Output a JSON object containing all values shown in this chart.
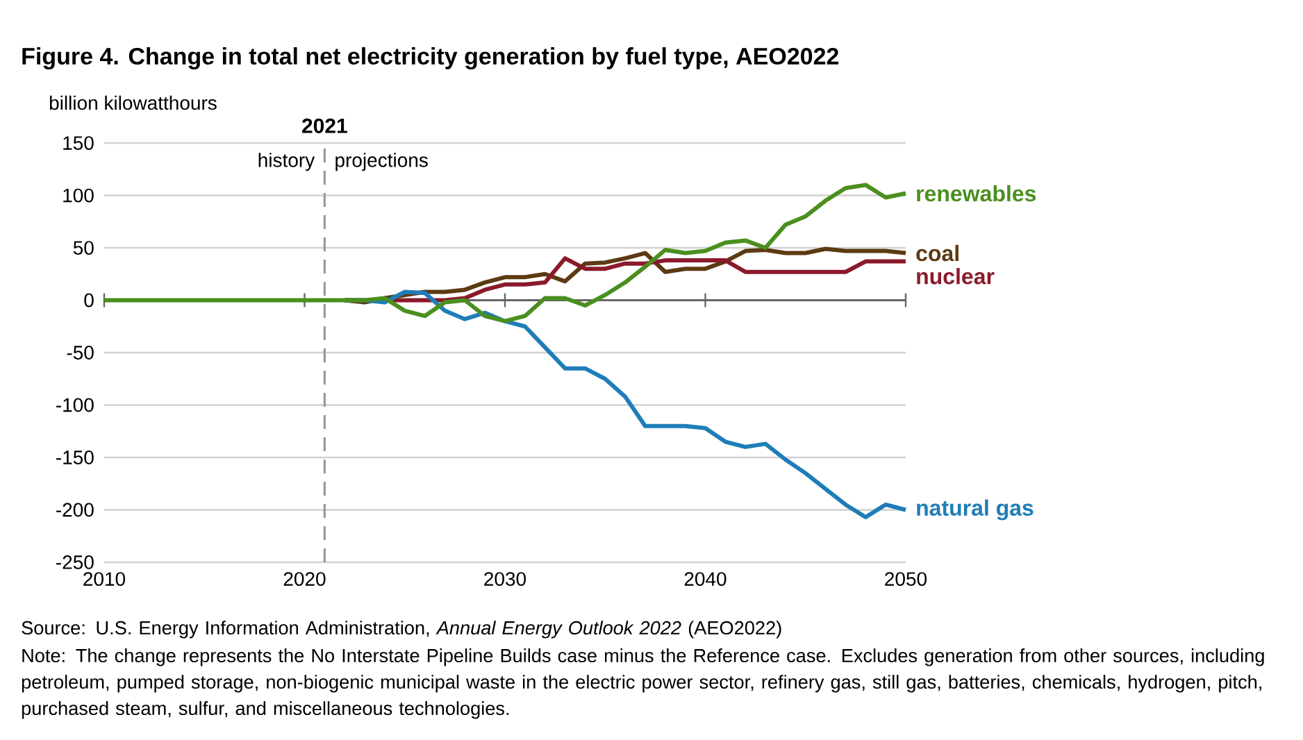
{
  "chart_data": {
    "type": "line",
    "title": "Figure 4. Change in total net electricity generation by fuel type, AEO2022",
    "ylabel": "billion kilowatthours",
    "x": [
      2010,
      2011,
      2012,
      2013,
      2014,
      2015,
      2016,
      2017,
      2018,
      2019,
      2020,
      2021,
      2022,
      2023,
      2024,
      2025,
      2026,
      2027,
      2028,
      2029,
      2030,
      2031,
      2032,
      2033,
      2034,
      2035,
      2036,
      2037,
      2038,
      2039,
      2040,
      2041,
      2042,
      2043,
      2044,
      2045,
      2046,
      2047,
      2048,
      2049,
      2050
    ],
    "series": [
      {
        "name": "coal",
        "color": "#5c3a12",
        "values": [
          null,
          null,
          null,
          null,
          null,
          null,
          null,
          null,
          null,
          null,
          null,
          null,
          0,
          -2,
          2,
          5,
          8,
          8,
          10,
          17,
          22,
          22,
          25,
          18,
          35,
          36,
          40,
          45,
          27,
          30,
          30,
          37,
          47,
          48,
          45,
          45,
          49,
          47,
          47,
          47,
          45
        ]
      },
      {
        "name": "nuclear",
        "color": "#8b1a2b",
        "values": [
          null,
          null,
          null,
          null,
          null,
          null,
          null,
          null,
          null,
          null,
          null,
          null,
          0,
          0,
          0,
          0,
          0,
          0,
          2,
          10,
          15,
          15,
          17,
          40,
          30,
          30,
          35,
          35,
          38,
          38,
          38,
          38,
          27,
          27,
          27,
          27,
          27,
          27,
          37,
          37,
          37
        ]
      },
      {
        "name": "natural gas",
        "color": "#1f7db8",
        "values": [
          null,
          null,
          null,
          null,
          null,
          null,
          null,
          null,
          null,
          null,
          null,
          null,
          0,
          0,
          -2,
          8,
          7,
          -10,
          -18,
          -12,
          -20,
          -25,
          -45,
          -65,
          -65,
          -75,
          -92,
          -120,
          -120,
          -120,
          -122,
          -135,
          -140,
          -137,
          -152,
          -165,
          -180,
          -195,
          -207,
          -195,
          -200
        ]
      },
      {
        "name": "renewables",
        "color": "#4a8f1f",
        "values": [
          0,
          0,
          0,
          0,
          0,
          0,
          0,
          0,
          0,
          0,
          0,
          0,
          0,
          0,
          2,
          -10,
          -15,
          -2,
          0,
          -15,
          -20,
          -15,
          2,
          2,
          -5,
          5,
          17,
          32,
          48,
          45,
          47,
          55,
          57,
          50,
          72,
          80,
          95,
          107,
          110,
          98,
          102
        ]
      }
    ],
    "xlim": [
      2010,
      2050
    ],
    "xticks": [
      2010,
      2020,
      2030,
      2040,
      2050
    ],
    "ylim": [
      -250,
      150
    ],
    "yticks": [
      -250,
      -200,
      -150,
      -100,
      -50,
      0,
      50,
      100,
      150
    ],
    "grid": "y",
    "legend": false,
    "line_style": "solid",
    "marker": "none",
    "ref_lines": [
      {
        "axis": "x",
        "value": 2021,
        "label": "2021",
        "color": "#999999",
        "line_style": "dashed"
      }
    ],
    "annotations": [
      "history",
      "projections",
      "Source: U.S. Energy Information Administration, *Annual Energy Outlook 2022* (AEO2022)",
      "Note: The change represents the No Interstate Pipeline Builds case minus the Reference case. Excludes generation from other sources, including petroleum, pumped storage, non-biogenic municipal waste in the electric power sector, refinery gas, still gas, batteries, chemicals, hydrogen, pitch, purchased steam, sulfur, and miscellaneous technologies."
    ]
  }
}
